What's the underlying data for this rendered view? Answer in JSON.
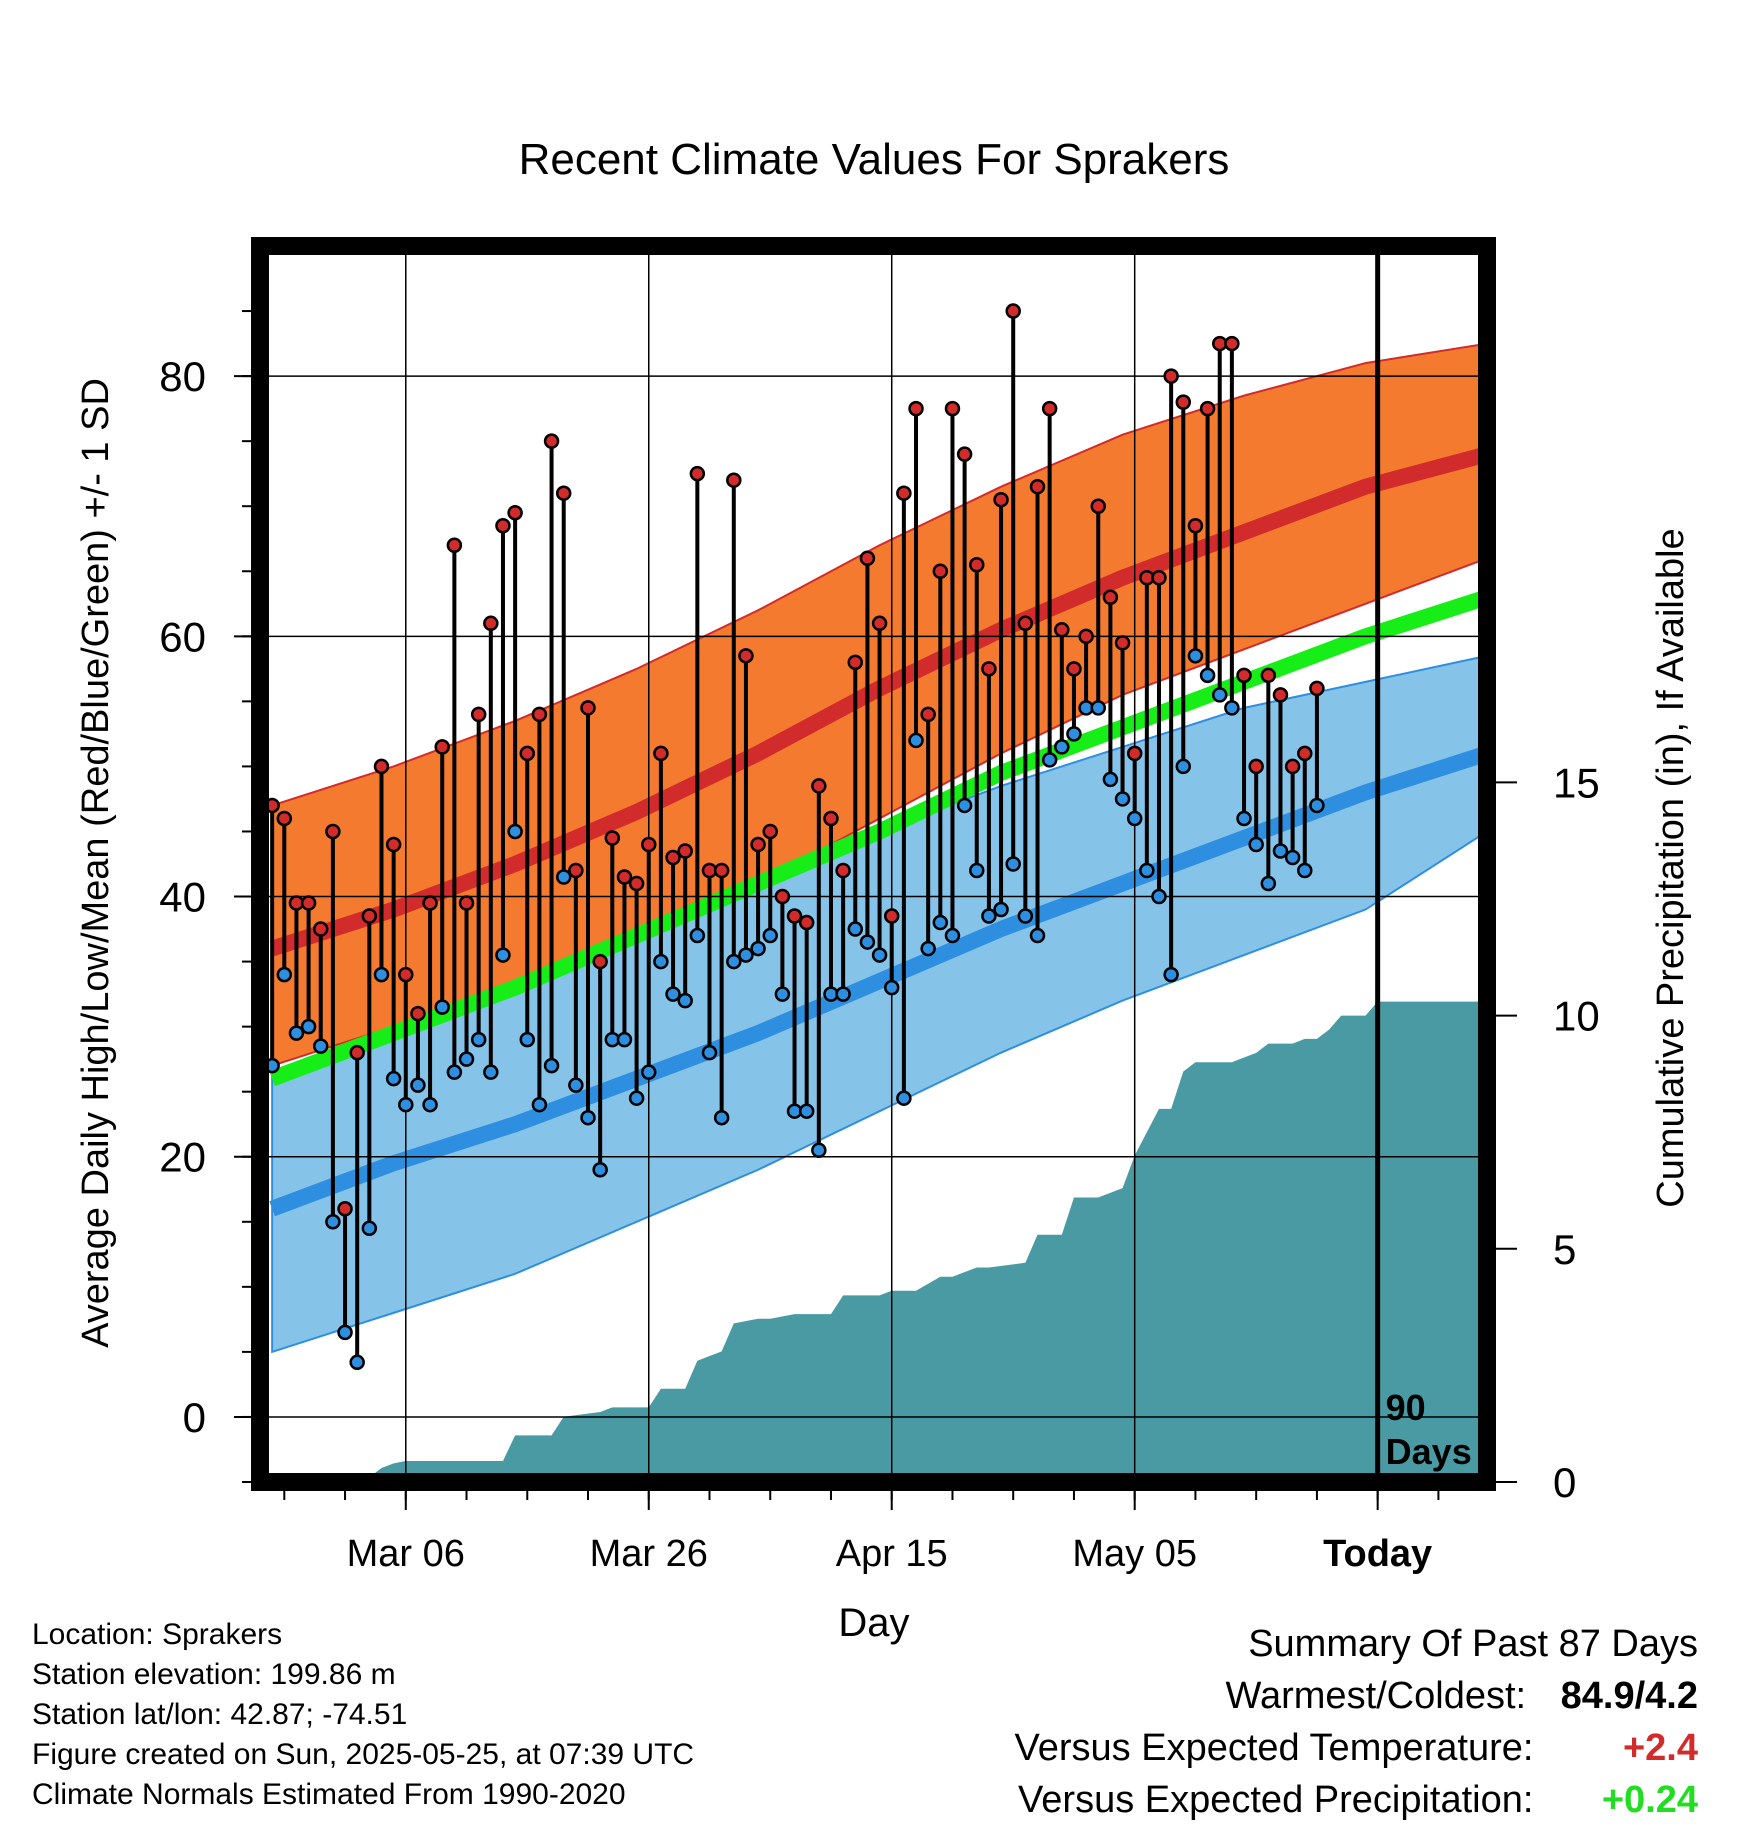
{
  "chart_data": {
    "type": "line",
    "title": "Recent Climate Values For Sprakers",
    "xlabel": "Day",
    "ylabel_left": "Average Daily High/Low/Mean (Red/Blue/Green) +/- 1 SD",
    "ylabel_right": "Cumulative Precipitation (in), If Available",
    "ylim": [
      -5,
      90
    ],
    "precip_ylim": [
      0,
      26.5
    ],
    "x_range_days": [
      -1,
      100
    ],
    "x_ticks": [
      {
        "day": 11,
        "label": "Mar 06"
      },
      {
        "day": 31,
        "label": "Mar 26"
      },
      {
        "day": 51,
        "label": "Apr 15"
      },
      {
        "day": 71,
        "label": "May 05"
      },
      {
        "day": 91,
        "label": "Today"
      }
    ],
    "y_ticks_left": [
      0,
      20,
      40,
      60,
      80
    ],
    "y_ticks_right": [
      0,
      5,
      10,
      15
    ],
    "today_marker": {
      "day": 91,
      "label_line1": "90",
      "label_line2": "Days"
    },
    "grid": true,
    "normals": {
      "days": [
        0,
        10,
        20,
        30,
        40,
        50,
        60,
        70,
        80,
        90,
        100
      ],
      "high_mean": [
        36,
        39,
        42.5,
        46.5,
        51,
        56,
        60.5,
        64.5,
        68,
        71.5,
        74
      ],
      "high_sd_upper": [
        47,
        50,
        53.5,
        57.5,
        62,
        67,
        71.5,
        75.5,
        78.5,
        81,
        82.5
      ],
      "high_sd_lower": [
        27,
        30,
        33,
        36.5,
        41,
        46,
        51,
        55.5,
        59,
        62.5,
        66
      ],
      "low_mean": [
        16,
        19.5,
        22.5,
        26,
        29.5,
        33.5,
        37.5,
        41,
        44.5,
        48,
        51
      ],
      "low_sd_upper": [
        26.5,
        30,
        33.5,
        37,
        40.5,
        45,
        48.5,
        51.5,
        54.5,
        56.5,
        58.5
      ],
      "low_sd_lower": [
        5,
        8,
        11,
        15,
        19,
        23.5,
        28,
        32,
        35.5,
        39,
        45
      ],
      "daily_mean": [
        26,
        29.5,
        33,
        37,
        41,
        45,
        49.5,
        53,
        56.5,
        60,
        63
      ]
    },
    "series": [
      {
        "name": "High",
        "color": "#d22b2b",
        "values": [
          47,
          46,
          39.5,
          39.5,
          37.5,
          45,
          16,
          28,
          38.5,
          50,
          44,
          34,
          31,
          39.5,
          51.5,
          67,
          39.5,
          54,
          61,
          68.5,
          69.5,
          51,
          54,
          75,
          71,
          42,
          54.5,
          35,
          44.5,
          41.5,
          41,
          44,
          51,
          43,
          43.5,
          72.5,
          42,
          42,
          72,
          58.5,
          44,
          45,
          40,
          38.5,
          38,
          48.5,
          46,
          42,
          58,
          66,
          61,
          38.5,
          71,
          77.5,
          54,
          65,
          77.5,
          74,
          65.5,
          57.5,
          70.5,
          85,
          61,
          71.5,
          77.5,
          60.5,
          57.5,
          60,
          70,
          63,
          59.5,
          51,
          64.5,
          64.5,
          80,
          78,
          68.5,
          77.5,
          82.5,
          82.5,
          57,
          50,
          57,
          55.5,
          50,
          51,
          56
        ]
      },
      {
        "name": "Low",
        "color": "#2e8fe0",
        "values": [
          27,
          34,
          29.5,
          30,
          28.5,
          15,
          6.5,
          4.2,
          14.5,
          34,
          26,
          24,
          25.5,
          24,
          31.5,
          26.5,
          27.5,
          29,
          26.5,
          35.5,
          45,
          29,
          24,
          27,
          41.5,
          25.5,
          23,
          19,
          29,
          29,
          24.5,
          26.5,
          35,
          32.5,
          32,
          37,
          28,
          23,
          35,
          35.5,
          36,
          37,
          32.5,
          23.5,
          23.5,
          20.5,
          32.5,
          32.5,
          37.5,
          36.5,
          35.5,
          33,
          24.5,
          52,
          36,
          38,
          37,
          47,
          42,
          38.5,
          39,
          42.5,
          38.5,
          37,
          50.5,
          51.5,
          52.5,
          54.5,
          54.5,
          49,
          47.5,
          46,
          42,
          40,
          34,
          50,
          58.5,
          57,
          55.5,
          54.5,
          46,
          44,
          41,
          43.5,
          43,
          42,
          47
        ]
      }
    ],
    "precip_cumulative": {
      "days": [
        7,
        8,
        9,
        10,
        11,
        19,
        20,
        23,
        24,
        27,
        28,
        31,
        32,
        34,
        35,
        37,
        38,
        40,
        41,
        43,
        46,
        47,
        50,
        51,
        53,
        55,
        56,
        58,
        59,
        62,
        63,
        65,
        66,
        68,
        70,
        71,
        72,
        73,
        74,
        75,
        76,
        78,
        79,
        80,
        81,
        82,
        84,
        85,
        86,
        87,
        88,
        90,
        91,
        100
      ],
      "values": [
        0,
        0.1,
        0.3,
        0.4,
        0.45,
        0.45,
        1.0,
        1.0,
        1.4,
        1.5,
        1.6,
        1.6,
        2.0,
        2.0,
        2.6,
        2.8,
        3.4,
        3.5,
        3.5,
        3.6,
        3.6,
        4.0,
        4.0,
        4.1,
        4.1,
        4.4,
        4.4,
        4.6,
        4.6,
        4.7,
        5.3,
        5.3,
        6.1,
        6.1,
        6.3,
        7.0,
        7.5,
        8.0,
        8.0,
        8.8,
        9.0,
        9.0,
        9.0,
        9.1,
        9.2,
        9.4,
        9.4,
        9.5,
        9.5,
        9.7,
        10.0,
        10.0,
        10.3,
        10.3
      ]
    }
  },
  "footer": {
    "location": "Location: Sprakers",
    "elevation": "Station elevation: 199.86 m",
    "latlon": "Station lat/lon: 42.87; -74.51",
    "created": "Figure created on Sun, 2025-05-25, at 07:39 UTC",
    "normals": "Climate Normals Estimated From 1990-2020"
  },
  "summary": {
    "title": "Summary Of Past 87 Days",
    "warmest_label": "Warmest/Coldest:",
    "warmest_value": "84.9/4.2",
    "temp_label": "Versus Expected Temperature:",
    "temp_value": "+2.4",
    "temp_color": "#d22b2b",
    "precip_label": "Versus Expected Precipitation:",
    "precip_value": "+0.24",
    "precip_color": "#22dd22"
  },
  "colors": {
    "high_band": "#f47a30",
    "high_line": "#d22b2b",
    "low_band": "#86c3e8",
    "low_line": "#2e8fe0",
    "mean_line": "#17ee17",
    "precip_fill": "#4a9aa4",
    "high_point": "#d22b2b",
    "low_point": "#2e8fe0"
  }
}
